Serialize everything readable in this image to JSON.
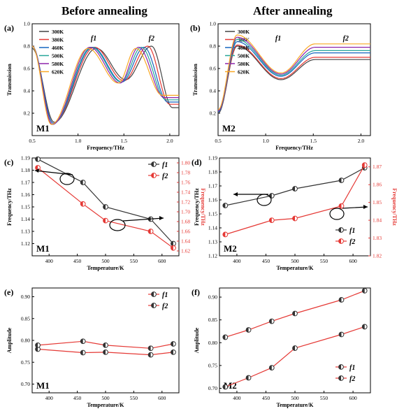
{
  "headings": {
    "left": "Before annealing",
    "right": "After annealing"
  },
  "chart_data": [
    {
      "id": "a",
      "panel_label": "(a)",
      "sample": "M1",
      "type": "line",
      "xlabel": "Frequency/THz",
      "ylabel": "Transmission",
      "xlim": [
        0.5,
        2.1
      ],
      "ylim": [
        0,
        1.0
      ],
      "xticks": [
        "0.5",
        "1.0",
        "1.5",
        "2.0"
      ],
      "yticks": [
        "0.2",
        "0.4",
        "0.6",
        "0.8",
        "1.0"
      ],
      "annotations": [
        "f1",
        "f2"
      ],
      "legend": "top-left",
      "series": [
        {
          "name": "300K",
          "color": "#444444",
          "peaks": [
            0.74,
            1.2,
            1.52,
            1.8,
            2.03
          ],
          "values": [
            0.78,
            0.12,
            0.78,
            0.5,
            0.8,
            0.25
          ]
        },
        {
          "name": "380K",
          "color": "#e53935",
          "peaks": [
            0.73,
            1.18,
            1.5,
            1.76,
            2.0
          ],
          "values": [
            0.8,
            0.11,
            0.79,
            0.49,
            0.8,
            0.28
          ]
        },
        {
          "name": "460K",
          "color": "#1565c0",
          "peaks": [
            0.73,
            1.16,
            1.48,
            1.72,
            1.98
          ],
          "values": [
            0.8,
            0.11,
            0.79,
            0.48,
            0.79,
            0.3
          ]
        },
        {
          "name": "500K",
          "color": "#26a69a",
          "peaks": [
            0.72,
            1.15,
            1.47,
            1.69,
            1.96
          ],
          "values": [
            0.8,
            0.1,
            0.79,
            0.48,
            0.79,
            0.32
          ]
        },
        {
          "name": "580K",
          "color": "#8e24aa",
          "peaks": [
            0.72,
            1.13,
            1.46,
            1.66,
            1.94
          ],
          "values": [
            0.8,
            0.1,
            0.79,
            0.47,
            0.79,
            0.34
          ]
        },
        {
          "name": "620K",
          "color": "#f9a825",
          "peaks": [
            0.71,
            1.11,
            1.44,
            1.63,
            1.92
          ],
          "values": [
            0.8,
            0.1,
            0.78,
            0.47,
            0.78,
            0.36
          ]
        }
      ]
    },
    {
      "id": "b",
      "panel_label": "(b)",
      "sample": "M2",
      "type": "line",
      "xlabel": "Frequency/THz",
      "ylabel": "Transmission",
      "xlim": [
        0.5,
        2.1
      ],
      "ylim": [
        0,
        1.0
      ],
      "xticks": [
        "0.5",
        "1.0",
        "1.5",
        "2.0"
      ],
      "yticks": [
        "0.2",
        "0.4",
        "0.6",
        "0.8",
        "1.0"
      ],
      "annotations": [
        "f1",
        "f2"
      ],
      "legend": "top-left",
      "series": [
        {
          "name": "300K",
          "color": "#444444",
          "peaks": [
            0.7,
            1.16,
            1.52,
            1.84
          ],
          "values": [
            0.2,
            0.8,
            0.5,
            0.68
          ]
        },
        {
          "name": "380K",
          "color": "#e53935",
          "peaks": [
            0.7,
            1.16,
            1.52,
            1.84
          ],
          "values": [
            0.21,
            0.81,
            0.51,
            0.7
          ]
        },
        {
          "name": "460K",
          "color": "#1565c0",
          "peaks": [
            0.7,
            1.16,
            1.52,
            1.84
          ],
          "values": [
            0.21,
            0.84,
            0.53,
            0.74
          ]
        },
        {
          "name": "500K",
          "color": "#26a69a",
          "peaks": [
            0.7,
            1.16,
            1.52,
            1.84
          ],
          "values": [
            0.22,
            0.86,
            0.54,
            0.76
          ]
        },
        {
          "name": "580K",
          "color": "#8e24aa",
          "peaks": [
            0.7,
            1.16,
            1.52,
            1.84
          ],
          "values": [
            0.22,
            0.88,
            0.55,
            0.79
          ]
        },
        {
          "name": "620K",
          "color": "#f9a825",
          "peaks": [
            0.7,
            1.16,
            1.52,
            1.84
          ],
          "values": [
            0.23,
            0.9,
            0.56,
            0.82
          ]
        }
      ]
    },
    {
      "id": "c",
      "panel_label": "(c)",
      "sample": "M1",
      "type": "line",
      "xlabel": "Temperature/K",
      "ylabel": "Frequency/THz",
      "ylabel_right": "Frequency/THz",
      "x": [
        380,
        460,
        500,
        580,
        620
      ],
      "xlim": [
        370,
        630
      ],
      "xticks": [
        "400",
        "450",
        "500",
        "550",
        "600"
      ],
      "ylim": [
        1.11,
        1.19
      ],
      "yticks": [
        "1.12",
        "1.13",
        "1.14",
        "1.15",
        "1.16",
        "1.17",
        "1.18",
        "1.19"
      ],
      "ylim_right": [
        1.61,
        1.81
      ],
      "yticks_right": [
        "1.62",
        "1.64",
        "1.66",
        "1.68",
        "1.70",
        "1.72",
        "1.74",
        "1.76",
        "1.78",
        "1.80"
      ],
      "legend": "top-right",
      "series": [
        {
          "name": "f1",
          "axis": "left",
          "color": "#333333",
          "values": [
            1.189,
            1.17,
            1.15,
            1.14,
            1.12
          ]
        },
        {
          "name": "f2",
          "axis": "right",
          "color": "#e53935",
          "values": [
            1.79,
            1.716,
            1.682,
            1.66,
            1.626
          ]
        }
      ]
    },
    {
      "id": "d",
      "panel_label": "(d)",
      "sample": "M2",
      "type": "line",
      "xlabel": "Temperature/K",
      "ylabel": "Frequency/THz",
      "ylabel_right": "Frequency/THz",
      "x": [
        380,
        460,
        500,
        580,
        620
      ],
      "xlim": [
        370,
        630
      ],
      "xticks": [
        "400",
        "450",
        "500",
        "550",
        "600"
      ],
      "ylim": [
        1.12,
        1.19
      ],
      "yticks": [
        "1.12",
        "1.13",
        "1.14",
        "1.15",
        "1.16",
        "1.17",
        "1.18",
        "1.19"
      ],
      "ylim_right": [
        1.82,
        1.875
      ],
      "yticks_right": [
        "1.82",
        "1.83",
        "1.84",
        "1.85",
        "1.86",
        "1.87"
      ],
      "legend": "bottom-right",
      "series": [
        {
          "name": "f1",
          "axis": "left",
          "color": "#333333",
          "values": [
            1.156,
            1.163,
            1.168,
            1.174,
            1.183
          ]
        },
        {
          "name": "f2",
          "axis": "right",
          "color": "#e53935",
          "values": [
            1.832,
            1.84,
            1.841,
            1.848,
            1.871
          ]
        }
      ]
    },
    {
      "id": "e",
      "panel_label": "(e)",
      "sample": "M1",
      "type": "line",
      "xlabel": "Temperature/K",
      "ylabel": "Amplitude",
      "x": [
        380,
        460,
        500,
        580,
        620
      ],
      "xlim": [
        370,
        630
      ],
      "xticks": [
        "400",
        "450",
        "500",
        "550",
        "600"
      ],
      "ylim": [
        0.68,
        0.92
      ],
      "yticks": [
        "0.70",
        "0.75",
        "0.80",
        "0.85",
        "0.90"
      ],
      "legend": "top-right",
      "series": [
        {
          "name": "f1",
          "color": "#e53935",
          "marker_color": "#333333",
          "values": [
            0.78,
            0.772,
            0.773,
            0.767,
            0.773
          ]
        },
        {
          "name": "f2",
          "color": "#e53935",
          "marker_color": "#333333",
          "values": [
            0.789,
            0.798,
            0.789,
            0.782,
            0.792
          ]
        }
      ]
    },
    {
      "id": "f",
      "panel_label": "(f)",
      "sample": "M2",
      "type": "line",
      "xlabel": "Temperature/K",
      "ylabel": "Amplitude",
      "x": [
        380,
        420,
        460,
        500,
        580,
        620
      ],
      "xlim": [
        370,
        630
      ],
      "xticks": [
        "400",
        "450",
        "500",
        "550",
        "600"
      ],
      "ylim": [
        0.69,
        0.92
      ],
      "yticks": [
        "0.70",
        "0.75",
        "0.80",
        "0.85",
        "0.90"
      ],
      "legend": "bottom-right",
      "series": [
        {
          "name": "f1",
          "color": "#e53935",
          "marker_color": "#333333",
          "values": [
            0.812,
            0.828,
            0.847,
            0.864,
            0.894,
            0.914
          ]
        },
        {
          "name": "f2",
          "color": "#e53935",
          "marker_color": "#333333",
          "values": [
            0.703,
            0.723,
            0.745,
            0.788,
            0.818,
            0.835
          ]
        }
      ]
    }
  ]
}
